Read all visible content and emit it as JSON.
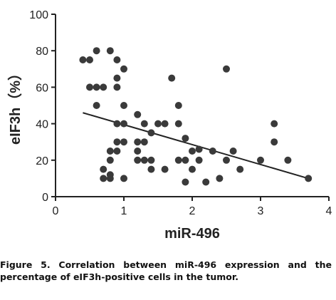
{
  "chart_data": {
    "type": "scatter",
    "xlabel": "miR-496",
    "ylabel": "eIF3h（%）",
    "xlim": [
      0,
      4
    ],
    "ylim": [
      0,
      100
    ],
    "x_ticks": [
      0,
      1,
      2,
      3,
      4
    ],
    "y_ticks": [
      0,
      20,
      40,
      60,
      80,
      100
    ],
    "grid": false,
    "trend_line": {
      "x": [
        0.4,
        3.7
      ],
      "y": [
        46,
        10
      ]
    },
    "points": [
      {
        "x": 0.4,
        "y": 75
      },
      {
        "x": 0.5,
        "y": 75
      },
      {
        "x": 0.5,
        "y": 60
      },
      {
        "x": 0.6,
        "y": 60
      },
      {
        "x": 0.6,
        "y": 80
      },
      {
        "x": 0.6,
        "y": 50
      },
      {
        "x": 0.7,
        "y": 60
      },
      {
        "x": 0.7,
        "y": 15
      },
      {
        "x": 0.7,
        "y": 10
      },
      {
        "x": 0.8,
        "y": 80
      },
      {
        "x": 0.8,
        "y": 25
      },
      {
        "x": 0.8,
        "y": 20
      },
      {
        "x": 0.8,
        "y": 12
      },
      {
        "x": 0.8,
        "y": 10
      },
      {
        "x": 0.9,
        "y": 75
      },
      {
        "x": 0.9,
        "y": 65
      },
      {
        "x": 0.9,
        "y": 60
      },
      {
        "x": 0.9,
        "y": 40
      },
      {
        "x": 0.9,
        "y": 30
      },
      {
        "x": 0.9,
        "y": 25
      },
      {
        "x": 1.0,
        "y": 70
      },
      {
        "x": 1.0,
        "y": 50
      },
      {
        "x": 1.0,
        "y": 40
      },
      {
        "x": 1.0,
        "y": 30
      },
      {
        "x": 1.0,
        "y": 10
      },
      {
        "x": 1.2,
        "y": 45
      },
      {
        "x": 1.2,
        "y": 30
      },
      {
        "x": 1.2,
        "y": 25
      },
      {
        "x": 1.2,
        "y": 20
      },
      {
        "x": 1.3,
        "y": 40
      },
      {
        "x": 1.3,
        "y": 30
      },
      {
        "x": 1.3,
        "y": 20
      },
      {
        "x": 1.4,
        "y": 35
      },
      {
        "x": 1.4,
        "y": 20
      },
      {
        "x": 1.4,
        "y": 15
      },
      {
        "x": 1.5,
        "y": 40
      },
      {
        "x": 1.6,
        "y": 40
      },
      {
        "x": 1.6,
        "y": 15
      },
      {
        "x": 1.7,
        "y": 65
      },
      {
        "x": 1.8,
        "y": 50
      },
      {
        "x": 1.8,
        "y": 40
      },
      {
        "x": 1.8,
        "y": 20
      },
      {
        "x": 1.9,
        "y": 32
      },
      {
        "x": 1.9,
        "y": 20
      },
      {
        "x": 1.9,
        "y": 8
      },
      {
        "x": 2.0,
        "y": 25
      },
      {
        "x": 2.0,
        "y": 15
      },
      {
        "x": 2.1,
        "y": 26
      },
      {
        "x": 2.1,
        "y": 20
      },
      {
        "x": 2.2,
        "y": 8
      },
      {
        "x": 2.3,
        "y": 25
      },
      {
        "x": 2.4,
        "y": 10
      },
      {
        "x": 2.5,
        "y": 70
      },
      {
        "x": 2.5,
        "y": 20
      },
      {
        "x": 2.6,
        "y": 25
      },
      {
        "x": 2.7,
        "y": 15
      },
      {
        "x": 3.0,
        "y": 20
      },
      {
        "x": 3.2,
        "y": 40
      },
      {
        "x": 3.2,
        "y": 30
      },
      {
        "x": 3.4,
        "y": 20
      },
      {
        "x": 3.7,
        "y": 10
      }
    ]
  },
  "caption": "Figure 5. Correlation between miR-496 expression and the percentage of eIF3h-positive cells in the tumor."
}
